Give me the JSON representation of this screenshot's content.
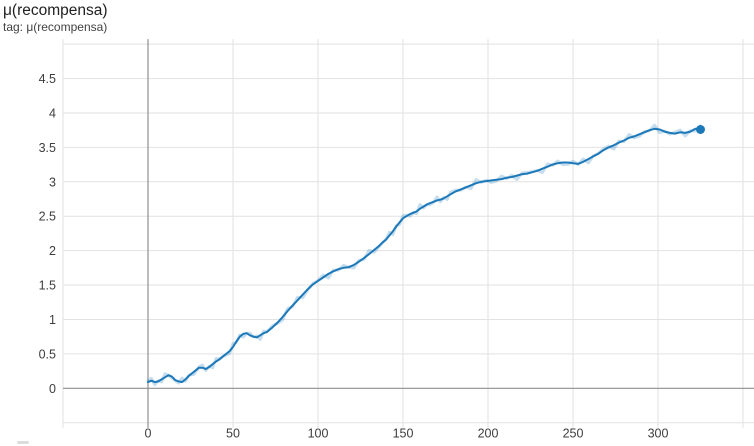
{
  "header": {
    "title": "μ(recompensa)",
    "subtitle": "tag: μ(recompensa)"
  },
  "chart_data": {
    "type": "line",
    "title": "μ(recompensa)",
    "xlabel": "",
    "ylabel": "",
    "xlim": [
      -50,
      356
    ],
    "ylim": [
      -0.5,
      5.0
    ],
    "x_ticks": [
      0,
      50,
      100,
      150,
      200,
      250,
      300
    ],
    "y_ticks": [
      0,
      0.5,
      1,
      1.5,
      2,
      2.5,
      3,
      3.5,
      4,
      4.5
    ],
    "grid": true,
    "legend_position": "none",
    "colors": {
      "line": "#1c78b8",
      "line_halo": "rgba(28,120,184,0.25)",
      "grid_light": "#e2e2e2",
      "grid_zero": "#8f8f8f",
      "tick_text": "#3d3d3d"
    },
    "series": [
      {
        "name": "μ(recompensa)",
        "smoothed": true,
        "end_marker": true,
        "final_point": [
          325,
          3.76
        ],
        "points": [
          [
            0,
            0.09
          ],
          [
            2,
            0.11
          ],
          [
            4,
            0.09
          ],
          [
            6,
            0.1
          ],
          [
            8,
            0.13
          ],
          [
            10,
            0.16
          ],
          [
            12,
            0.19
          ],
          [
            14,
            0.17
          ],
          [
            16,
            0.12
          ],
          [
            18,
            0.1
          ],
          [
            20,
            0.09
          ],
          [
            22,
            0.13
          ],
          [
            24,
            0.18
          ],
          [
            27,
            0.24
          ],
          [
            30,
            0.3
          ],
          [
            32,
            0.3
          ],
          [
            34,
            0.28
          ],
          [
            36,
            0.31
          ],
          [
            38,
            0.35
          ],
          [
            40,
            0.39
          ],
          [
            42,
            0.42
          ],
          [
            44,
            0.46
          ],
          [
            46,
            0.5
          ],
          [
            48,
            0.54
          ],
          [
            50,
            0.6
          ],
          [
            52,
            0.68
          ],
          [
            54,
            0.75
          ],
          [
            56,
            0.79
          ],
          [
            58,
            0.8
          ],
          [
            60,
            0.77
          ],
          [
            62,
            0.75
          ],
          [
            64,
            0.74
          ],
          [
            66,
            0.77
          ],
          [
            68,
            0.8
          ],
          [
            70,
            0.82
          ],
          [
            73,
            0.88
          ],
          [
            76,
            0.95
          ],
          [
            79,
            1.03
          ],
          [
            82,
            1.12
          ],
          [
            85,
            1.2
          ],
          [
            88,
            1.28
          ],
          [
            91,
            1.36
          ],
          [
            94,
            1.44
          ],
          [
            97,
            1.51
          ],
          [
            100,
            1.56
          ],
          [
            103,
            1.61
          ],
          [
            106,
            1.66
          ],
          [
            109,
            1.7
          ],
          [
            112,
            1.73
          ],
          [
            115,
            1.75
          ],
          [
            118,
            1.76
          ],
          [
            121,
            1.79
          ],
          [
            124,
            1.84
          ],
          [
            127,
            1.89
          ],
          [
            130,
            1.95
          ],
          [
            133,
            2.01
          ],
          [
            136,
            2.07
          ],
          [
            138,
            2.12
          ],
          [
            140,
            2.16
          ],
          [
            142,
            2.22
          ],
          [
            144,
            2.28
          ],
          [
            146,
            2.35
          ],
          [
            148,
            2.41
          ],
          [
            150,
            2.47
          ],
          [
            152,
            2.5
          ],
          [
            154,
            2.53
          ],
          [
            156,
            2.55
          ],
          [
            158,
            2.57
          ],
          [
            160,
            2.61
          ],
          [
            162,
            2.64
          ],
          [
            164,
            2.67
          ],
          [
            166,
            2.69
          ],
          [
            168,
            2.71
          ],
          [
            170,
            2.73
          ],
          [
            172,
            2.74
          ],
          [
            174,
            2.76
          ],
          [
            176,
            2.79
          ],
          [
            178,
            2.82
          ],
          [
            181,
            2.86
          ],
          [
            184,
            2.89
          ],
          [
            187,
            2.92
          ],
          [
            190,
            2.95
          ],
          [
            193,
            2.98
          ],
          [
            196,
            3.0
          ],
          [
            199,
            3.01
          ],
          [
            202,
            3.02
          ],
          [
            205,
            3.03
          ],
          [
            208,
            3.04
          ],
          [
            211,
            3.06
          ],
          [
            214,
            3.07
          ],
          [
            217,
            3.09
          ],
          [
            220,
            3.11
          ],
          [
            223,
            3.12
          ],
          [
            226,
            3.14
          ],
          [
            229,
            3.16
          ],
          [
            232,
            3.19
          ],
          [
            235,
            3.22
          ],
          [
            238,
            3.25
          ],
          [
            241,
            3.27
          ],
          [
            244,
            3.28
          ],
          [
            247,
            3.28
          ],
          [
            250,
            3.27
          ],
          [
            253,
            3.26
          ],
          [
            256,
            3.29
          ],
          [
            259,
            3.33
          ],
          [
            262,
            3.37
          ],
          [
            265,
            3.41
          ],
          [
            268,
            3.46
          ],
          [
            271,
            3.5
          ],
          [
            274,
            3.53
          ],
          [
            277,
            3.57
          ],
          [
            280,
            3.6
          ],
          [
            283,
            3.64
          ],
          [
            286,
            3.66
          ],
          [
            289,
            3.69
          ],
          [
            292,
            3.72
          ],
          [
            295,
            3.75
          ],
          [
            298,
            3.77
          ],
          [
            301,
            3.76
          ],
          [
            304,
            3.73
          ],
          [
            307,
            3.71
          ],
          [
            310,
            3.7
          ],
          [
            313,
            3.72
          ],
          [
            316,
            3.71
          ],
          [
            319,
            3.73
          ],
          [
            322,
            3.77
          ],
          [
            325,
            3.76
          ]
        ]
      }
    ]
  }
}
